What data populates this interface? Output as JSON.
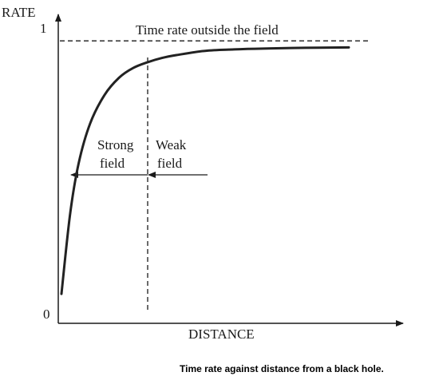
{
  "chart_data": {
    "type": "line",
    "xlabel": "DISTANCE",
    "ylabel": "RATE",
    "ylim": [
      0,
      1
    ],
    "y_tick_labels": [
      "0",
      "1"
    ],
    "grid": false,
    "x": [
      0.0,
      0.3,
      0.6,
      1.0,
      1.5,
      2.0,
      2.5,
      3.0,
      3.5,
      4.0,
      5.0,
      6.0,
      7.0,
      8.0,
      10.0
    ],
    "values": [
      0.07,
      0.35,
      0.53,
      0.67,
      0.77,
      0.83,
      0.865,
      0.885,
      0.9,
      0.91,
      0.925,
      0.93,
      0.933,
      0.935,
      0.937
    ],
    "boundary_x": 3.0,
    "asymptote_y": 0.96,
    "annotations": {
      "asymptote_label": "Time rate outside the field",
      "strong_label_line1": "Strong",
      "strong_label_line2": "field",
      "weak_label_line1": "Weak",
      "weak_label_line2": "field"
    }
  },
  "caption": "Time rate against distance from a black hole."
}
